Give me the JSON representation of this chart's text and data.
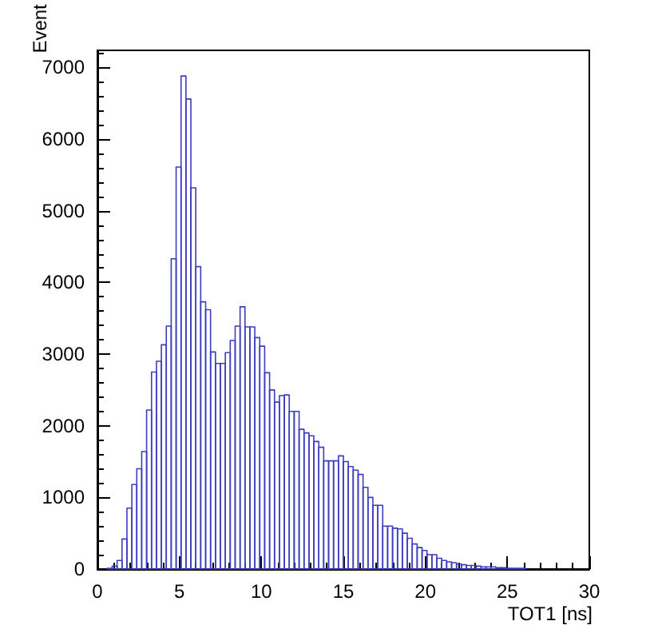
{
  "chart_data": {
    "type": "histogram",
    "xlabel": "TOT1 [ns]",
    "ylabel": "Event",
    "bins": [
      0.6,
      0.9,
      1.2,
      1.5,
      1.8,
      2.1,
      2.4,
      2.7,
      3,
      3.3,
      3.6,
      3.9,
      4.2,
      4.5,
      4.8,
      5.1,
      5.4,
      5.7,
      6,
      6.3,
      6.6,
      6.9,
      7.2,
      7.5,
      7.8,
      8.1,
      8.4,
      8.7,
      9,
      9.3,
      9.6,
      9.9,
      10.2,
      10.5,
      10.8,
      11.1,
      11.4,
      11.7,
      12,
      12.3,
      12.6,
      12.9,
      13.2,
      13.5,
      13.8,
      14.1,
      14.4,
      14.7,
      15,
      15.3,
      15.6,
      15.9,
      16.2,
      16.5,
      16.8,
      17.1,
      17.4,
      17.7,
      18,
      18.3,
      18.6,
      18.9,
      19.2,
      19.5,
      19.8,
      20.1,
      20.4,
      20.7,
      21,
      21.3,
      21.6,
      21.9,
      22.2,
      22.5,
      22.8,
      23.1,
      23.4,
      23.7,
      24,
      24.3,
      24.6,
      24.9,
      25.2,
      25.5,
      25.8,
      26.1
    ],
    "values": [
      10,
      40,
      120,
      420,
      850,
      1180,
      1400,
      1640,
      2220,
      2750,
      2900,
      3130,
      3390,
      4330,
      5610,
      6880,
      6560,
      5320,
      4220,
      3730,
      3620,
      3030,
      2870,
      2870,
      3020,
      3190,
      3390,
      3660,
      3380,
      3380,
      3230,
      3110,
      2740,
      2500,
      2330,
      2420,
      2430,
      2200,
      2200,
      1950,
      1900,
      1860,
      1780,
      1700,
      1510,
      1510,
      1510,
      1580,
      1500,
      1430,
      1380,
      1320,
      1140,
      1000,
      890,
      890,
      600,
      600,
      570,
      560,
      500,
      430,
      350,
      300,
      260,
      200,
      200,
      150,
      120,
      100,
      90,
      70,
      60,
      50,
      50,
      40,
      30,
      30,
      30,
      20,
      20,
      10,
      10,
      10,
      10
    ],
    "color": "#3d3dbf",
    "xlim": [
      0,
      30
    ],
    "xticks": [
      0,
      5,
      10,
      15,
      20,
      25,
      30
    ],
    "ylim": [
      0,
      7240
    ],
    "yticks": [
      0,
      1000,
      2000,
      3000,
      4000,
      5000,
      6000,
      7000
    ],
    "grid": false
  }
}
